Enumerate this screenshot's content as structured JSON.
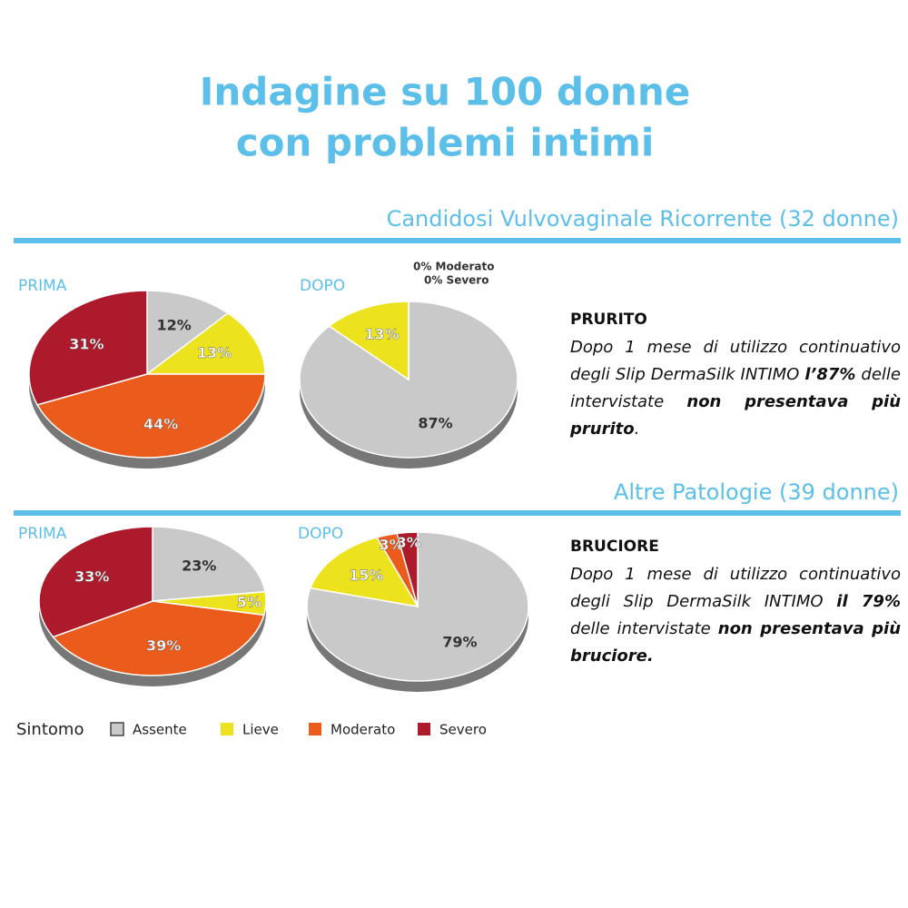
{
  "title": [
    "Indagine su 100 donne",
    "con problemi intimi"
  ],
  "sections": [
    {
      "heading": "Candidosi Vulvovaginale Ricorrente (32 donne)",
      "symptom": "PRURITO",
      "text": [
        {
          "text": "Dopo 1 mese di utilizzo continuativo degli Slip DermaSilk INTIMO ",
          "bold": false
        },
        {
          "text": "l’87%",
          "bold": true
        },
        {
          "text": " delle intervistate ",
          "bold": false
        },
        {
          "text": "non presentava più prurito",
          "bold": true
        },
        {
          "text": ".",
          "bold": false
        }
      ]
    },
    {
      "heading": "Altre Patologie (39 donne)",
      "symptom": "BRUCIORE",
      "text": [
        {
          "text": "Dopo 1 mese di utilizzo continuativo degli Slip DermaSilk INTIMO ",
          "bold": false
        },
        {
          "text": "il 79%",
          "bold": true
        },
        {
          "text": " delle intervistate ",
          "bold": false
        },
        {
          "text": "non presentava più bruciore.",
          "bold": true
        }
      ]
    }
  ],
  "legend_title": "Sintomo",
  "chart_data": [
    {
      "type": "pie",
      "title": "PRIMA",
      "categories": [
        "Assente",
        "Lieve",
        "Moderato",
        "Severo"
      ],
      "values": [
        12,
        13,
        44,
        31
      ],
      "value_labels": [
        "12%",
        "13%",
        "44%",
        "31%"
      ],
      "colors": [
        "#c9c9c9",
        "#ece31e",
        "#ea5b1c",
        "#ad1a2c"
      ]
    },
    {
      "type": "pie",
      "title": "DOPO",
      "categories": [
        "Assente",
        "Lieve",
        "Moderato",
        "Severo"
      ],
      "values": [
        87,
        13,
        0,
        0
      ],
      "value_labels": [
        "87%",
        "13%",
        "0%  Moderato",
        "0% Severo"
      ],
      "colors": [
        "#c9c9c9",
        "#ece31e",
        "#ea5b1c",
        "#ad1a2c"
      ]
    },
    {
      "type": "pie",
      "title": "PRIMA",
      "categories": [
        "Assente",
        "Lieve",
        "Moderato",
        "Severo"
      ],
      "values": [
        23,
        5,
        39,
        33
      ],
      "value_labels": [
        "23%",
        "5%",
        "39%",
        "33%"
      ],
      "colors": [
        "#c9c9c9",
        "#ece31e",
        "#ea5b1c",
        "#ad1a2c"
      ]
    },
    {
      "type": "pie",
      "title": "DOPO",
      "categories": [
        "Assente",
        "Lieve",
        "Moderato",
        "Severo"
      ],
      "values": [
        79,
        15,
        3,
        3
      ],
      "value_labels": [
        "79%",
        "15%",
        "3%",
        "3%"
      ],
      "colors": [
        "#c9c9c9",
        "#ece31e",
        "#ea5b1c",
        "#ad1a2c"
      ]
    }
  ]
}
